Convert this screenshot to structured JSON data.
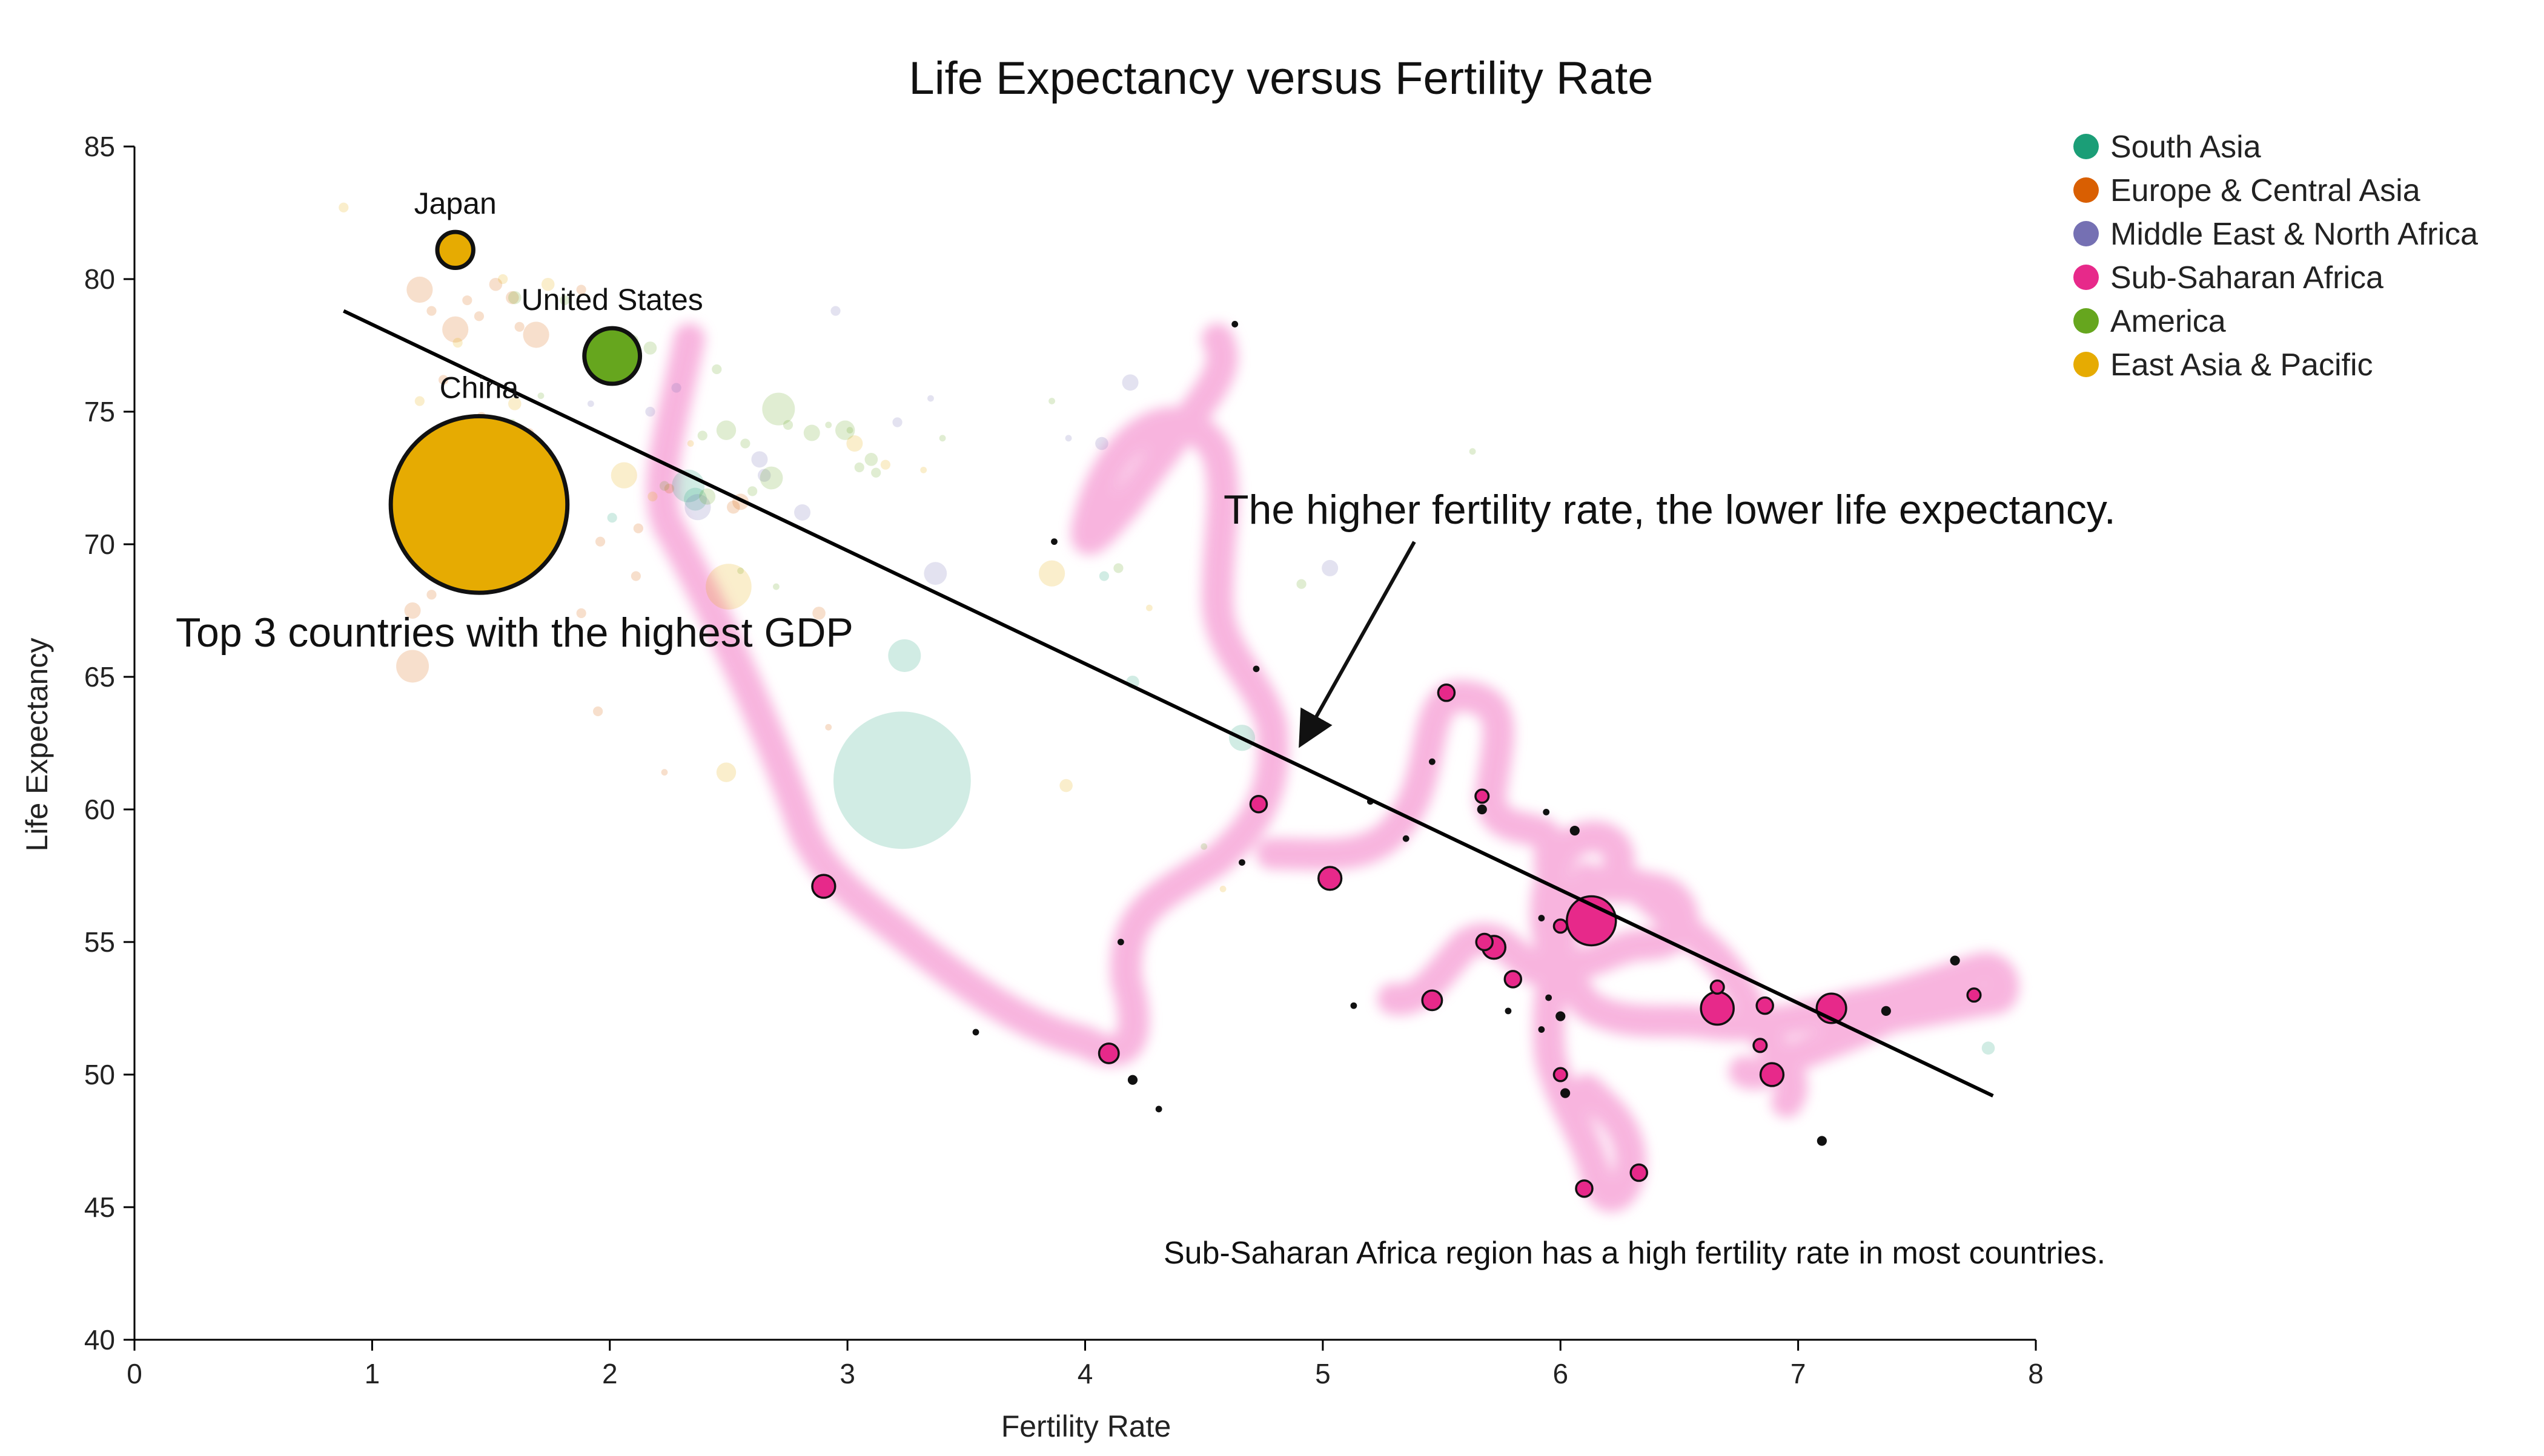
{
  "chart_data": {
    "type": "scatter",
    "title": "Life Expectancy versus Fertility Rate",
    "xlabel": "Fertility Rate",
    "ylabel": "Life Expectancy",
    "xlim": [
      0,
      8
    ],
    "ylim": [
      40,
      85
    ],
    "xticks": [
      "0",
      "1",
      "2",
      "3",
      "4",
      "5",
      "6",
      "7",
      "8"
    ],
    "yticks": [
      "40",
      "45",
      "50",
      "55",
      "60",
      "65",
      "70",
      "75",
      "80",
      "85"
    ],
    "grid": false,
    "legend_position": "top-right",
    "regions": [
      {
        "name": "South Asia",
        "color": "#1b9e77"
      },
      {
        "name": "Europe & Central Asia",
        "color": "#d95f02"
      },
      {
        "name": "Middle East & North Africa",
        "color": "#7570b3"
      },
      {
        "name": "Sub-Saharan Africa",
        "color": "#e7298a"
      },
      {
        "name": "America",
        "color": "#66a61e"
      },
      {
        "name": "East Asia & Pacific",
        "color": "#e6ab02"
      }
    ],
    "highlighted": [
      {
        "label": "Japan",
        "region": "East Asia & Pacific",
        "x": 1.35,
        "y": 81.1,
        "size": 11
      },
      {
        "label": "United States",
        "region": "America",
        "x": 2.01,
        "y": 77.1,
        "size": 17
      },
      {
        "label": "China",
        "region": "East Asia & Pacific",
        "x": 1.45,
        "y": 71.5,
        "size": 54
      }
    ],
    "sub_saharan": [
      [
        5.52,
        64.4,
        5
      ],
      [
        5.67,
        60.5,
        4
      ],
      [
        5.67,
        60.0,
        3
      ],
      [
        4.73,
        60.2,
        5
      ],
      [
        2.9,
        57.1,
        7
      ],
      [
        5.03,
        57.4,
        7
      ],
      [
        6.13,
        55.8,
        15
      ],
      [
        5.72,
        54.8,
        7
      ],
      [
        5.68,
        55.0,
        5
      ],
      [
        5.8,
        53.6,
        5
      ],
      [
        6.0,
        52.2,
        3
      ],
      [
        5.46,
        52.8,
        6
      ],
      [
        6.66,
        52.5,
        10
      ],
      [
        7.14,
        52.5,
        9
      ],
      [
        6.66,
        53.3,
        4
      ],
      [
        6.86,
        52.6,
        5
      ],
      [
        6.84,
        51.1,
        4
      ],
      [
        6.89,
        50.0,
        7
      ],
      [
        7.37,
        52.4,
        3
      ],
      [
        7.66,
        54.3,
        3
      ],
      [
        7.74,
        53.0,
        4
      ],
      [
        4.1,
        50.8,
        6
      ],
      [
        6.33,
        46.3,
        5
      ],
      [
        6.1,
        45.7,
        5
      ],
      [
        6.0,
        50.0,
        4
      ],
      [
        6.02,
        49.3,
        3
      ],
      [
        6.06,
        59.2,
        3
      ],
      [
        5.94,
        59.9,
        2
      ],
      [
        5.92,
        55.9,
        2
      ],
      [
        6.0,
        55.6,
        4
      ],
      [
        5.46,
        61.8,
        2
      ],
      [
        5.13,
        52.6,
        2
      ],
      [
        5.95,
        52.9,
        2
      ],
      [
        5.92,
        51.7,
        2
      ],
      [
        7.1,
        47.5,
        3
      ],
      [
        4.2,
        49.8,
        3
      ],
      [
        4.31,
        48.7,
        2
      ],
      [
        3.54,
        51.6,
        2
      ],
      [
        4.15,
        55.0,
        2
      ],
      [
        4.66,
        58.0,
        2
      ],
      [
        4.72,
        65.3,
        2
      ],
      [
        3.87,
        70.1,
        2
      ],
      [
        4.63,
        78.3,
        2
      ],
      [
        5.35,
        58.9,
        2
      ],
      [
        5.78,
        52.4,
        2
      ],
      [
        5.2,
        60.3,
        2
      ]
    ],
    "background_points": [
      [
        "South Asia",
        3.23,
        61.1,
        42
      ],
      [
        "South Asia",
        3.24,
        65.8,
        10
      ],
      [
        "South Asia",
        4.66,
        62.7,
        8
      ],
      [
        "South Asia",
        2.33,
        72.2,
        10
      ],
      [
        "South Asia",
        2.36,
        71.7,
        7
      ],
      [
        "South Asia",
        4.2,
        64.8,
        4
      ],
      [
        "South Asia",
        7.8,
        51.0,
        4
      ],
      [
        "South Asia",
        2.01,
        71.0,
        3
      ],
      [
        "South Asia",
        4.08,
        68.8,
        3
      ],
      [
        "Europe & Central Asia",
        1.17,
        65.4,
        10
      ],
      [
        "Europe & Central Asia",
        1.2,
        79.6,
        8
      ],
      [
        "Europe & Central Asia",
        1.35,
        78.1,
        8
      ],
      [
        "Europe & Central Asia",
        1.69,
        77.9,
        8
      ],
      [
        "Europe & Central Asia",
        1.52,
        79.8,
        4
      ],
      [
        "Europe & Central Asia",
        1.59,
        79.3,
        4
      ],
      [
        "Europe & Central Asia",
        1.25,
        78.8,
        3
      ],
      [
        "Europe & Central Asia",
        1.45,
        78.6,
        3
      ],
      [
        "Europe & Central Asia",
        1.62,
        78.2,
        3
      ],
      [
        "Europe & Central Asia",
        1.3,
        76.2,
        3
      ],
      [
        "Europe & Central Asia",
        1.46,
        74.8,
        3
      ],
      [
        "Europe & Central Asia",
        1.66,
        74.2,
        3
      ],
      [
        "Europe & Central Asia",
        1.7,
        72.4,
        3
      ],
      [
        "Europe & Central Asia",
        1.17,
        67.5,
        5
      ],
      [
        "Europe & Central Asia",
        1.56,
        73.1,
        3
      ],
      [
        "Europe & Central Asia",
        1.25,
        68.1,
        3
      ],
      [
        "Europe & Central Asia",
        1.88,
        67.4,
        3
      ],
      [
        "Europe & Central Asia",
        2.55,
        71.6,
        5
      ],
      [
        "Europe & Central Asia",
        2.52,
        71.4,
        4
      ],
      [
        "Europe & Central Asia",
        1.96,
        70.1,
        3
      ],
      [
        "Europe & Central Asia",
        2.11,
        68.8,
        3
      ],
      [
        "Europe & Central Asia",
        1.95,
        63.7,
        3
      ],
      [
        "Europe & Central Asia",
        2.23,
        61.4,
        2
      ],
      [
        "Europe & Central Asia",
        2.92,
        63.1,
        2
      ],
      [
        "Europe & Central Asia",
        2.88,
        67.4,
        4
      ],
      [
        "Europe & Central Asia",
        2.25,
        72.1,
        3
      ],
      [
        "Europe & Central Asia",
        2.12,
        70.6,
        3
      ],
      [
        "Europe & Central Asia",
        1.4,
        79.2,
        3
      ],
      [
        "Europe & Central Asia",
        1.88,
        79.6,
        3
      ],
      [
        "Middle East & North Africa",
        2.37,
        71.4,
        8
      ],
      [
        "Middle East & North Africa",
        3.37,
        68.9,
        7
      ],
      [
        "Middle East & North Africa",
        2.63,
        73.2,
        5
      ],
      [
        "Middle East & North Africa",
        2.65,
        72.6,
        4
      ],
      [
        "Middle East & North Africa",
        2.81,
        71.2,
        5
      ],
      [
        "Middle East & North Africa",
        4.19,
        76.1,
        5
      ],
      [
        "Middle East & North Africa",
        4.07,
        73.8,
        4
      ],
      [
        "Middle East & North Africa",
        2.95,
        78.8,
        3
      ],
      [
        "Middle East & North Africa",
        2.17,
        75.0,
        3
      ],
      [
        "Middle East & North Africa",
        2.28,
        75.9,
        3
      ],
      [
        "Middle East & North Africa",
        3.21,
        74.6,
        3
      ],
      [
        "Middle East & North Africa",
        3.93,
        74.0,
        2
      ],
      [
        "Middle East & North Africa",
        5.03,
        69.1,
        5
      ],
      [
        "Middle East & North Africa",
        3.35,
        75.5,
        2
      ],
      [
        "Middle East & North Africa",
        1.92,
        75.3,
        2
      ],
      [
        "America",
        2.71,
        75.1,
        10
      ],
      [
        "America",
        2.68,
        72.5,
        7
      ],
      [
        "America",
        2.41,
        71.8,
        5
      ],
      [
        "America",
        2.49,
        74.3,
        6
      ],
      [
        "America",
        2.75,
        74.5,
        3
      ],
      [
        "America",
        2.85,
        74.2,
        5
      ],
      [
        "America",
        2.99,
        74.3,
        6
      ],
      [
        "America",
        3.1,
        73.2,
        4
      ],
      [
        "America",
        2.23,
        72.2,
        3
      ],
      [
        "America",
        1.6,
        79.3,
        4
      ],
      [
        "America",
        1.81,
        79.2,
        3
      ],
      [
        "America",
        2.1,
        77.7,
        3
      ],
      [
        "America",
        2.17,
        77.4,
        4
      ],
      [
        "America",
        2.39,
        74.1,
        3
      ],
      [
        "America",
        2.6,
        72.0,
        3
      ],
      [
        "America",
        3.4,
        74.0,
        2
      ],
      [
        "America",
        3.86,
        75.4,
        2
      ],
      [
        "America",
        2.45,
        76.6,
        3
      ],
      [
        "America",
        4.91,
        68.5,
        3
      ],
      [
        "America",
        4.14,
        69.1,
        3
      ],
      [
        "America",
        3.05,
        72.9,
        3
      ],
      [
        "America",
        3.12,
        72.7,
        3
      ],
      [
        "America",
        2.57,
        73.8,
        3
      ],
      [
        "America",
        1.97,
        77.8,
        2
      ],
      [
        "America",
        3.01,
        74.3,
        2
      ],
      [
        "America",
        2.92,
        74.5,
        2
      ],
      [
        "America",
        1.71,
        75.6,
        2
      ],
      [
        "America",
        2.55,
        69.0,
        2
      ],
      [
        "America",
        4.5,
        58.6,
        2
      ],
      [
        "America",
        5.63,
        73.5,
        2
      ],
      [
        "America",
        1.59,
        74.6,
        2
      ],
      [
        "America",
        2.7,
        68.4,
        2
      ],
      [
        "East Asia & Pacific",
        2.5,
        68.4,
        14
      ],
      [
        "East Asia & Pacific",
        2.06,
        72.6,
        8
      ],
      [
        "East Asia & Pacific",
        1.72,
        71.3,
        8
      ],
      [
        "East Asia & Pacific",
        2.49,
        61.4,
        6
      ],
      [
        "East Asia & Pacific",
        3.86,
        68.9,
        8
      ],
      [
        "East Asia & Pacific",
        3.03,
        73.8,
        5
      ],
      [
        "East Asia & Pacific",
        1.6,
        75.3,
        4
      ],
      [
        "East Asia & Pacific",
        1.2,
        75.4,
        3
      ],
      [
        "East Asia & Pacific",
        0.88,
        82.7,
        3
      ],
      [
        "East Asia & Pacific",
        1.74,
        79.8,
        4
      ],
      [
        "East Asia & Pacific",
        1.36,
        77.6,
        3
      ],
      [
        "East Asia & Pacific",
        1.55,
        80.0,
        3
      ],
      [
        "East Asia & Pacific",
        1.78,
        72.6,
        3
      ],
      [
        "East Asia & Pacific",
        2.05,
        76.8,
        3
      ],
      [
        "East Asia & Pacific",
        2.18,
        71.8,
        3
      ],
      [
        "East Asia & Pacific",
        3.92,
        60.9,
        4
      ],
      [
        "East Asia & Pacific",
        4.58,
        57.0,
        2
      ],
      [
        "East Asia & Pacific",
        3.16,
        73.0,
        3
      ],
      [
        "East Asia & Pacific",
        3.32,
        72.8,
        2
      ],
      [
        "East Asia & Pacific",
        1.65,
        69.3,
        2
      ],
      [
        "East Asia & Pacific",
        1.31,
        71.7,
        2
      ],
      [
        "East Asia & Pacific",
        2.34,
        73.8,
        2
      ],
      [
        "East Asia & Pacific",
        4.27,
        67.6,
        2
      ]
    ],
    "trend_line": {
      "x": [
        0.88,
        7.82
      ],
      "y": [
        78.8,
        49.2
      ]
    },
    "annotations": {
      "gdp_note": "Top 3 countries with the highest GDP",
      "trend_note": "The higher fertility rate, the lower life expectancy.",
      "africa_note": "Sub-Saharan Africa region has a high fertility rate in most countries."
    }
  }
}
